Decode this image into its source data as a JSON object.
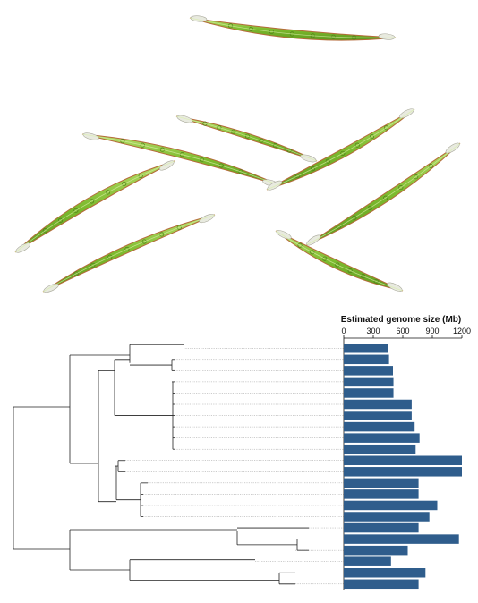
{
  "chart_data": {
    "type": "bar",
    "orientation": "horizontal",
    "xlabel": "Estimated genome size (Mb)",
    "xlim": [
      0,
      1200
    ],
    "xticks": [
      0,
      300,
      600,
      900,
      1200
    ],
    "bar_color": "#2f5d8c",
    "grid": false,
    "values": [
      450,
      460,
      500,
      505,
      505,
      690,
      690,
      720,
      770,
      730,
      1200,
      1200,
      760,
      760,
      950,
      870,
      760,
      1170,
      650,
      480,
      830,
      760
    ]
  },
  "illustration": {
    "description_icon": "closterium-cell-icon",
    "cell_fill": "#8cc63f",
    "cell_edge": "#b56a3a",
    "cell_tip": "#e8eadf"
  },
  "tree": {
    "line_color": "#222222",
    "guide_color": "#9a9a9a"
  }
}
